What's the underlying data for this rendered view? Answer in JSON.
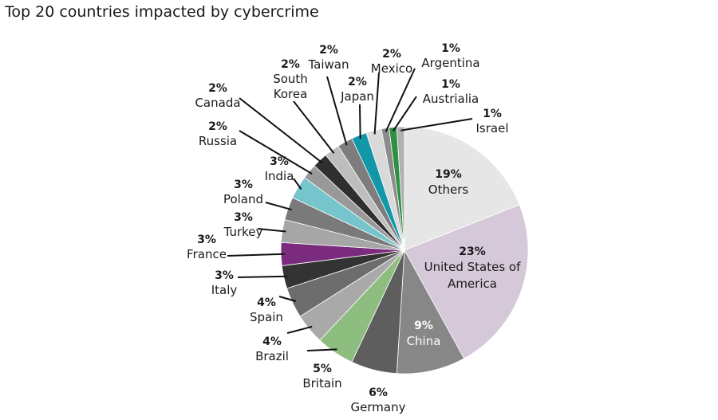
{
  "chart_data": {
    "type": "pie",
    "title": "Top 20 countries impacted by cybercrime",
    "slices": [
      {
        "label": "Others",
        "pct_label": "19%",
        "value": 19,
        "color": "#e6e6e6"
      },
      {
        "label": "United States of America",
        "pct_label": "23%",
        "value": 23,
        "color": "#d5c8d9"
      },
      {
        "label": "China",
        "pct_label": "9%",
        "value": 9,
        "color": "#878787"
      },
      {
        "label": "Germany",
        "pct_label": "6%",
        "value": 6,
        "color": "#5e5e5e"
      },
      {
        "label": "Britain",
        "pct_label": "5%",
        "value": 5,
        "color": "#8dbe7f"
      },
      {
        "label": "Brazil",
        "pct_label": "4%",
        "value": 4,
        "color": "#a9a9a9"
      },
      {
        "label": "Spain",
        "pct_label": "4%",
        "value": 4,
        "color": "#6d6d6d"
      },
      {
        "label": "Italy",
        "pct_label": "3%",
        "value": 3,
        "color": "#333333"
      },
      {
        "label": "France",
        "pct_label": "3%",
        "value": 3,
        "color": "#7a2b7d"
      },
      {
        "label": "Turkey",
        "pct_label": "3%",
        "value": 3,
        "color": "#a6a6a6"
      },
      {
        "label": "Poland",
        "pct_label": "3%",
        "value": 3,
        "color": "#7a7a7a"
      },
      {
        "label": "India",
        "pct_label": "3%",
        "value": 3,
        "color": "#76c4cc"
      },
      {
        "label": "Russia",
        "pct_label": "2%",
        "value": 2,
        "color": "#999999"
      },
      {
        "label": "Canada",
        "pct_label": "2%",
        "value": 2,
        "color": "#2f2f2f"
      },
      {
        "label": "South Korea",
        "pct_label": "2%",
        "value": 2,
        "color": "#bdbdbd"
      },
      {
        "label": "Taiwan",
        "pct_label": "2%",
        "value": 2,
        "color": "#7d7d7d"
      },
      {
        "label": "Japan",
        "pct_label": "2%",
        "value": 2,
        "color": "#1197a8"
      },
      {
        "label": "Mexico",
        "pct_label": "2%",
        "value": 2,
        "color": "#d9d9d9"
      },
      {
        "label": "Argentina",
        "pct_label": "1%",
        "value": 1,
        "color": "#8c8c8c"
      },
      {
        "label": "Austrialia",
        "pct_label": "1%",
        "value": 1,
        "color": "#2e9142"
      },
      {
        "label": "Israel",
        "pct_label": "1%",
        "value": 1,
        "color": "#b0b0b0"
      }
    ],
    "legend": "none"
  }
}
